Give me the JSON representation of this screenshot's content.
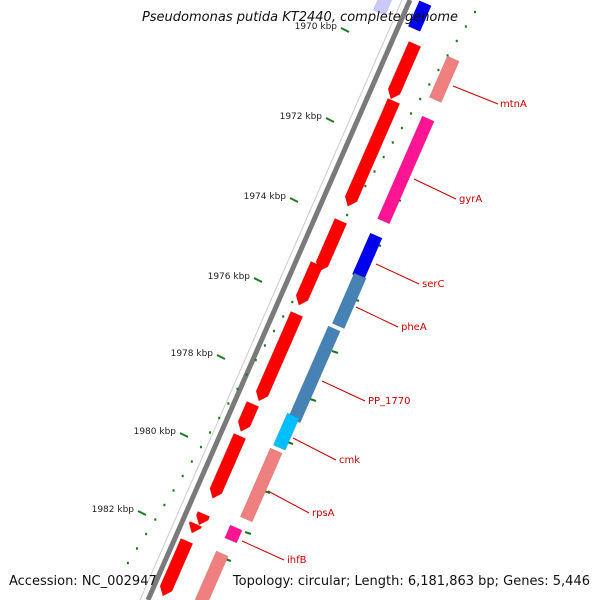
{
  "title": "Pseudomonas putida KT2440, complete genome",
  "footer": {
    "accession": "Accession: NC_002947",
    "summary": "Topology: circular; Length: 6,181,863 bp; Genes: 5,446"
  },
  "kbp_labels": [
    "1970 kbp",
    "1972 kbp",
    "1974 kbp",
    "1976 kbp",
    "1978 kbp",
    "1980 kbp",
    "1982 kbp"
  ],
  "gene_labels": [
    "mtnA",
    "gyrA",
    "serC",
    "pheA",
    "PP_1770",
    "cmk",
    "rpsA",
    "ihfB"
  ],
  "colors": {
    "backbone": "#7a7a7a",
    "cds_red": "#ff0000",
    "pink": "#f08080",
    "magenta": "#ff1493",
    "blue": "#0000ee",
    "steelblue": "#4682b4",
    "cyan": "#00bfff",
    "lavender": "#c9c9ff",
    "tick_green": "#1a7a1a",
    "label_red": "#cc0000"
  }
}
